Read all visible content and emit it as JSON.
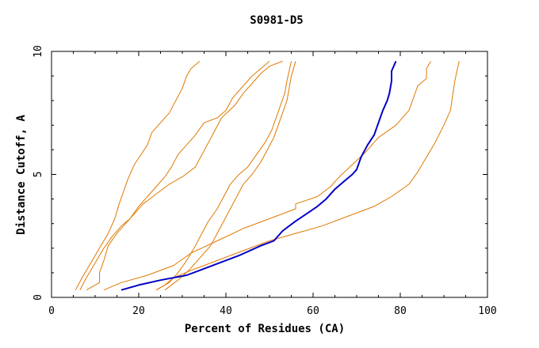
{
  "chart_data": {
    "type": "line",
    "title": "S0981-D5",
    "xlabel": "Percent of Residues (CA)",
    "ylabel": "Distance Cutoff, A",
    "xlim": [
      0,
      100
    ],
    "ylim": [
      0,
      10
    ],
    "x_ticks": [
      0,
      20,
      40,
      60,
      80,
      100
    ],
    "y_ticks": [
      0,
      5,
      10
    ],
    "grid": false,
    "legend": "none",
    "colors": {
      "highlight": "#0000c8",
      "other": "#e07800",
      "axis": "#000000"
    },
    "series": [
      {
        "highlight": false,
        "points": [
          [
            5.5,
            0.3
          ],
          [
            7,
            0.8
          ],
          [
            9,
            1.4
          ],
          [
            11,
            2.0
          ],
          [
            13,
            2.6
          ],
          [
            14.5,
            3.2
          ],
          [
            15.5,
            3.8
          ],
          [
            16.5,
            4.3
          ],
          [
            17.5,
            4.8
          ],
          [
            19,
            5.4
          ],
          [
            20.5,
            5.8
          ],
          [
            22,
            6.2
          ],
          [
            23,
            6.7
          ],
          [
            25,
            7.1
          ],
          [
            27,
            7.5
          ],
          [
            28.5,
            8.0
          ],
          [
            30,
            8.5
          ],
          [
            31,
            9.0
          ],
          [
            32,
            9.3
          ],
          [
            34,
            9.6
          ]
        ]
      },
      {
        "highlight": false,
        "points": [
          [
            6.5,
            0.3
          ],
          [
            8,
            0.8
          ],
          [
            10,
            1.4
          ],
          [
            12,
            2.0
          ],
          [
            14,
            2.5
          ],
          [
            16,
            2.9
          ],
          [
            18,
            3.2
          ],
          [
            20,
            3.7
          ],
          [
            22,
            4.1
          ],
          [
            24,
            4.5
          ],
          [
            26,
            4.9
          ],
          [
            27.5,
            5.3
          ],
          [
            29,
            5.8
          ],
          [
            31,
            6.2
          ],
          [
            33,
            6.6
          ],
          [
            35,
            7.1
          ],
          [
            38,
            7.3
          ],
          [
            40,
            7.6
          ],
          [
            41.5,
            8.1
          ],
          [
            44,
            8.6
          ],
          [
            46,
            9.0
          ],
          [
            48,
            9.3
          ],
          [
            50,
            9.6
          ]
        ]
      },
      {
        "highlight": false,
        "points": [
          [
            8,
            0.3
          ],
          [
            11,
            0.6
          ],
          [
            11,
            1.0
          ],
          [
            12,
            1.5
          ],
          [
            13,
            2.1
          ],
          [
            15,
            2.6
          ],
          [
            17,
            3.0
          ],
          [
            19,
            3.4
          ],
          [
            21,
            3.8
          ],
          [
            24,
            4.2
          ],
          [
            27,
            4.6
          ],
          [
            30,
            4.9
          ],
          [
            33,
            5.3
          ],
          [
            34.5,
            5.8
          ],
          [
            36,
            6.3
          ],
          [
            37.5,
            6.8
          ],
          [
            39,
            7.3
          ],
          [
            42,
            7.8
          ],
          [
            44,
            8.3
          ],
          [
            46,
            8.7
          ],
          [
            48,
            9.1
          ],
          [
            50,
            9.4
          ],
          [
            53,
            9.6
          ]
        ]
      },
      {
        "highlight": false,
        "points": [
          [
            24,
            0.3
          ],
          [
            27,
            0.6
          ],
          [
            29,
            1.0
          ],
          [
            31,
            1.5
          ],
          [
            33,
            2.1
          ],
          [
            34.5,
            2.6
          ],
          [
            36,
            3.1
          ],
          [
            38,
            3.6
          ],
          [
            39.5,
            4.1
          ],
          [
            41,
            4.6
          ],
          [
            43,
            5.0
          ],
          [
            45,
            5.3
          ],
          [
            47,
            5.8
          ],
          [
            49,
            6.3
          ],
          [
            50.5,
            6.8
          ],
          [
            51.5,
            7.3
          ],
          [
            52.5,
            7.8
          ],
          [
            53.5,
            8.3
          ],
          [
            54,
            8.8
          ],
          [
            54.5,
            9.2
          ],
          [
            55,
            9.6
          ]
        ]
      },
      {
        "highlight": false,
        "points": [
          [
            26,
            0.3
          ],
          [
            29,
            0.7
          ],
          [
            31.5,
            1.1
          ],
          [
            34,
            1.6
          ],
          [
            36.5,
            2.1
          ],
          [
            38,
            2.6
          ],
          [
            39.5,
            3.1
          ],
          [
            41,
            3.6
          ],
          [
            42.5,
            4.1
          ],
          [
            44,
            4.6
          ],
          [
            46,
            5.0
          ],
          [
            48,
            5.5
          ],
          [
            49.5,
            6.0
          ],
          [
            51,
            6.5
          ],
          [
            52,
            7.0
          ],
          [
            53,
            7.5
          ],
          [
            54,
            8.0
          ],
          [
            54.5,
            8.5
          ],
          [
            55,
            9.0
          ],
          [
            55.5,
            9.3
          ],
          [
            56,
            9.6
          ]
        ]
      },
      {
        "highlight": false,
        "points": [
          [
            12,
            0.3
          ],
          [
            16,
            0.6
          ],
          [
            22,
            0.9
          ],
          [
            28,
            1.3
          ],
          [
            32,
            1.8
          ],
          [
            38,
            2.3
          ],
          [
            44,
            2.8
          ],
          [
            50,
            3.2
          ],
          [
            56,
            3.6
          ],
          [
            56,
            3.8
          ],
          [
            61,
            4.1
          ],
          [
            64,
            4.5
          ],
          [
            66,
            4.9
          ],
          [
            69,
            5.4
          ],
          [
            72,
            5.9
          ],
          [
            75,
            6.5
          ],
          [
            79,
            7.0
          ],
          [
            82,
            7.6
          ],
          [
            83,
            8.1
          ],
          [
            84,
            8.6
          ],
          [
            86,
            8.9
          ],
          [
            86,
            9.3
          ],
          [
            87,
            9.6
          ]
        ]
      },
      {
        "highlight": false,
        "points": [
          [
            24,
            0.3
          ],
          [
            26,
            0.5
          ],
          [
            28,
            0.8
          ],
          [
            32,
            1.1
          ],
          [
            38,
            1.5
          ],
          [
            44,
            1.9
          ],
          [
            50,
            2.3
          ],
          [
            56,
            2.6
          ],
          [
            62,
            2.9
          ],
          [
            68,
            3.3
          ],
          [
            74,
            3.7
          ],
          [
            78,
            4.1
          ],
          [
            82,
            4.6
          ],
          [
            84,
            5.1
          ],
          [
            86,
            5.7
          ],
          [
            88,
            6.3
          ],
          [
            90,
            7.0
          ],
          [
            91.5,
            7.6
          ],
          [
            92,
            8.2
          ],
          [
            92.5,
            8.8
          ],
          [
            93,
            9.2
          ],
          [
            93.5,
            9.6
          ]
        ]
      },
      {
        "highlight": true,
        "points": [
          [
            16,
            0.3
          ],
          [
            20,
            0.5
          ],
          [
            25,
            0.7
          ],
          [
            31,
            0.9
          ],
          [
            37,
            1.3
          ],
          [
            43,
            1.7
          ],
          [
            48,
            2.1
          ],
          [
            51,
            2.3
          ],
          [
            53,
            2.7
          ],
          [
            56,
            3.1
          ],
          [
            58.5,
            3.4
          ],
          [
            61,
            3.7
          ],
          [
            63,
            4.0
          ],
          [
            65,
            4.4
          ],
          [
            67,
            4.7
          ],
          [
            69,
            5.0
          ],
          [
            70,
            5.2
          ],
          [
            71,
            5.7
          ],
          [
            72.5,
            6.2
          ],
          [
            74,
            6.6
          ],
          [
            75,
            7.1
          ],
          [
            76,
            7.6
          ],
          [
            77,
            8.0
          ],
          [
            77.5,
            8.3
          ],
          [
            78,
            8.8
          ],
          [
            78,
            9.2
          ],
          [
            79,
            9.6
          ]
        ]
      }
    ]
  }
}
